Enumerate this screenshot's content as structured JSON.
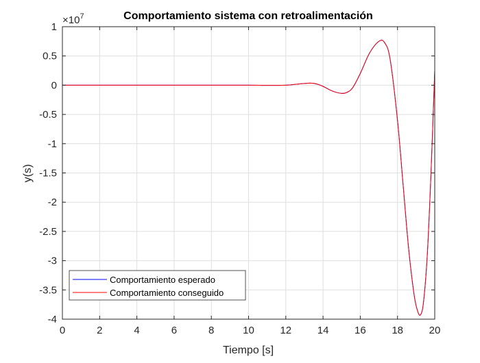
{
  "chart_data": {
    "type": "line",
    "title": "Comportamiento sistema con retroalimentación",
    "xlabel": "Tiempo [s]",
    "ylabel": "y(s)",
    "y_exponent": "×10",
    "y_exponent_power": "7",
    "xlim": [
      0,
      20
    ],
    "ylim": [
      -4,
      1
    ],
    "x_ticks": [
      0,
      2,
      4,
      6,
      8,
      10,
      12,
      14,
      16,
      18,
      20
    ],
    "x_tick_labels": [
      "0",
      "2",
      "4",
      "6",
      "8",
      "10",
      "12",
      "14",
      "16",
      "18",
      "20"
    ],
    "y_ticks": [
      -4,
      -3.5,
      -3,
      -2.5,
      -2,
      -1.5,
      -1,
      -0.5,
      0,
      0.5,
      1
    ],
    "y_tick_labels": [
      "-4",
      "-3.5",
      "-3",
      "-2.5",
      "-2",
      "-1.5",
      "-1",
      "-0.5",
      "0",
      "0.5",
      "1"
    ],
    "grid": true,
    "legend_position": "bottom-left",
    "series": [
      {
        "name": "Comportamiento esperado",
        "color": "#0000ff",
        "x": [
          0,
          2,
          4,
          6,
          8,
          10,
          11,
          12,
          12.5,
          13,
          13.3,
          13.6,
          14,
          14.5,
          15,
          15.3,
          15.6,
          16,
          16.5,
          17,
          17.3,
          17.6,
          18,
          18.3,
          18.6,
          18.9,
          19.1,
          19.25,
          19.4,
          19.6,
          19.8,
          20
        ],
        "y": [
          0,
          0,
          0,
          0,
          0,
          0,
          -0.003,
          0,
          0.015,
          0.03,
          0.035,
          0.025,
          -0.02,
          -0.1,
          -0.14,
          -0.12,
          -0.04,
          0.2,
          0.55,
          0.75,
          0.73,
          0.45,
          -0.6,
          -1.7,
          -2.8,
          -3.6,
          -3.88,
          -3.92,
          -3.7,
          -2.9,
          -1.5,
          0.25
        ]
      },
      {
        "name": "Comportamiento conseguido",
        "color": "#ff0000",
        "x": [
          0,
          2,
          4,
          6,
          8,
          10,
          11,
          12,
          12.5,
          13,
          13.3,
          13.6,
          14,
          14.5,
          15,
          15.3,
          15.6,
          16,
          16.5,
          17,
          17.3,
          17.6,
          18,
          18.3,
          18.6,
          18.9,
          19.1,
          19.25,
          19.4,
          19.6,
          19.8,
          20
        ],
        "y": [
          0,
          0,
          0,
          0,
          0,
          0,
          -0.003,
          0,
          0.015,
          0.03,
          0.035,
          0.025,
          -0.02,
          -0.1,
          -0.14,
          -0.12,
          -0.04,
          0.2,
          0.55,
          0.75,
          0.73,
          0.45,
          -0.6,
          -1.7,
          -2.8,
          -3.6,
          -3.88,
          -3.92,
          -3.7,
          -2.9,
          -1.5,
          0.25
        ]
      }
    ],
    "colors": {
      "grid": "#dfdfdf",
      "axes": "#262626",
      "legend_border": "#262626"
    }
  }
}
